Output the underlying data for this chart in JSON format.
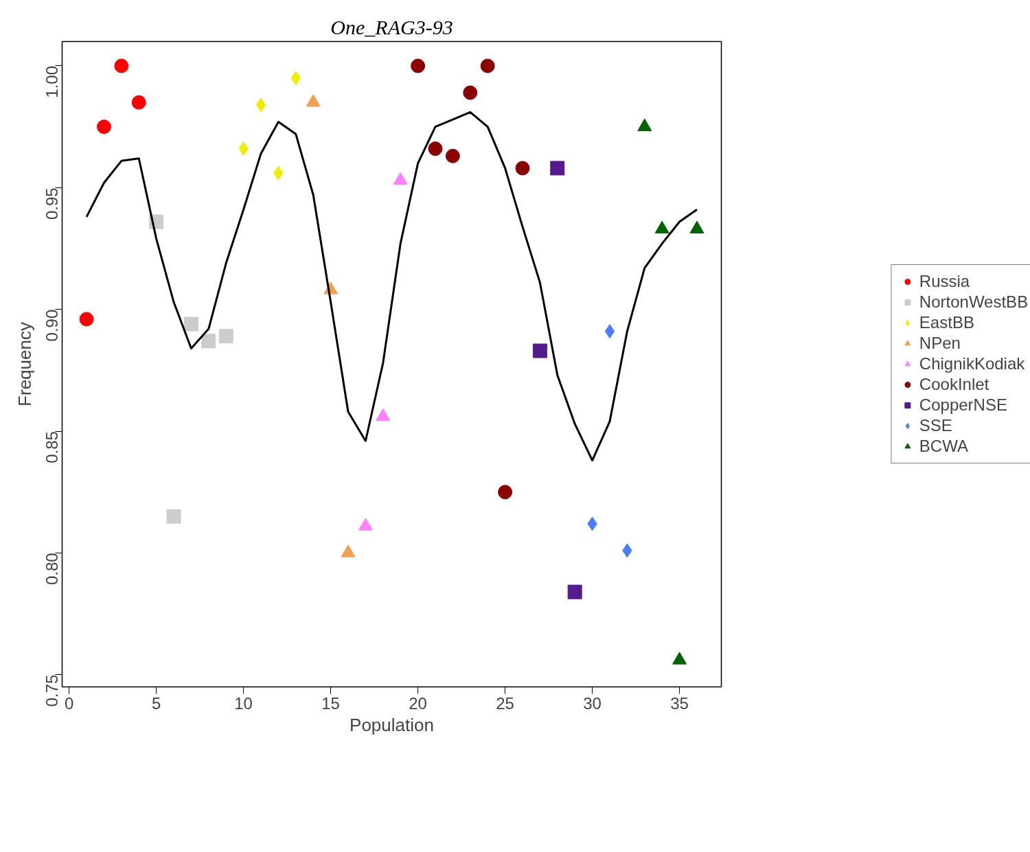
{
  "chart_data": {
    "type": "scatter",
    "title": "One_RAG3-93",
    "xlabel": "Population",
    "ylabel": "Frequency",
    "xlim": [
      -0.4,
      37.4
    ],
    "ylim": [
      0.745,
      1.01
    ],
    "xticks": [
      0,
      5,
      10,
      15,
      20,
      25,
      30,
      35
    ],
    "yticks": [
      {
        "value": 0.75,
        "label": "0.75"
      },
      {
        "value": 0.8,
        "label": "0.80"
      },
      {
        "value": 0.85,
        "label": "0.85"
      },
      {
        "value": 0.9,
        "label": "0.90"
      },
      {
        "value": 0.95,
        "label": "0.95"
      },
      {
        "value": 1.0,
        "label": "1.00"
      }
    ],
    "grid": false,
    "legend": "right",
    "series": [
      {
        "name": "Russia",
        "color": "#ff0000",
        "marker": "circle",
        "x": [
          1,
          2,
          3,
          4
        ],
        "values": [
          0.896,
          0.975,
          1.0,
          0.985
        ]
      },
      {
        "name": "NortonWestBB",
        "color": "#cccccc",
        "marker": "square",
        "x": [
          5,
          6,
          7,
          8,
          9
        ],
        "values": [
          0.936,
          0.815,
          0.894,
          0.887,
          0.889
        ]
      },
      {
        "name": "EastBB",
        "color": "#eeee00",
        "marker": "diamond",
        "x": [
          10,
          11,
          12,
          13
        ],
        "values": [
          0.966,
          0.984,
          0.956,
          0.995
        ]
      },
      {
        "name": "NPen",
        "color": "#f0a050",
        "marker": "triangle",
        "x": [
          14,
          15,
          16
        ],
        "values": [
          0.985,
          0.908,
          0.8
        ]
      },
      {
        "name": "ChignikKodiak",
        "color": "#ff80ff",
        "marker": "triangle",
        "x": [
          17,
          18,
          19
        ],
        "values": [
          0.811,
          0.856,
          0.953
        ]
      },
      {
        "name": "CookInlet",
        "color": "#8b0000",
        "marker": "circle",
        "x": [
          20,
          21,
          22,
          23,
          24,
          25,
          26
        ],
        "values": [
          1.0,
          0.966,
          0.963,
          0.989,
          1.0,
          0.825,
          0.958
        ]
      },
      {
        "name": "CopperNSE",
        "color": "#551a8b",
        "marker": "square",
        "x": [
          27,
          28,
          29
        ],
        "values": [
          0.883,
          0.958,
          0.784
        ]
      },
      {
        "name": "SSE",
        "color": "#4c7dff",
        "marker": "diamond",
        "x": [
          30,
          31,
          32
        ],
        "values": [
          0.812,
          0.891,
          0.801
        ]
      },
      {
        "name": "BCWA",
        "color": "#006400",
        "marker": "triangle",
        "x": [
          33,
          34,
          35,
          36
        ],
        "values": [
          0.975,
          0.933,
          0.756,
          0.933
        ]
      },
      {
        "type": "line",
        "color": "#000000",
        "marker": "none",
        "line_style": "solid",
        "x": [
          1,
          2,
          3,
          4,
          5,
          6,
          7,
          8,
          9,
          10,
          11,
          12,
          13,
          14,
          15,
          16,
          17,
          18,
          19,
          20,
          21,
          22,
          23,
          24,
          25,
          26,
          27,
          28,
          29,
          30,
          31,
          32,
          33,
          34,
          35,
          36
        ],
        "values": [
          0.938,
          0.952,
          0.961,
          0.962,
          0.929,
          0.903,
          0.884,
          0.892,
          0.919,
          0.941,
          0.964,
          0.977,
          0.972,
          0.947,
          0.903,
          0.858,
          0.846,
          0.878,
          0.927,
          0.96,
          0.975,
          0.978,
          0.981,
          0.975,
          0.958,
          0.934,
          0.911,
          0.873,
          0.853,
          0.838,
          0.854,
          0.891,
          0.917,
          0.927,
          0.936,
          0.941
        ]
      }
    ]
  }
}
